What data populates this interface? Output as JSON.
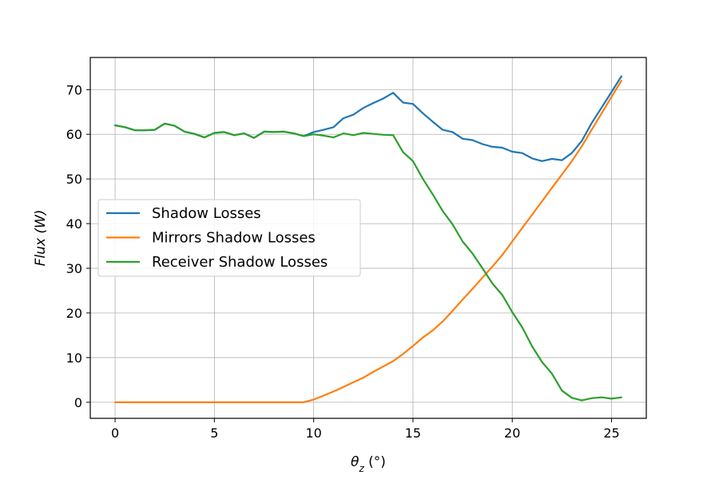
{
  "chart_data": {
    "type": "line",
    "xlabel": "θz (°)",
    "xlabel_main": "θ",
    "xlabel_sub": "z",
    "xlabel_unit": " (°)",
    "ylabel": "Flux (W)",
    "xlim": [
      -1.25,
      26.75
    ],
    "ylim": [
      -3.6,
      77.2
    ],
    "xticks": [
      0,
      5,
      10,
      15,
      20,
      25
    ],
    "yticks": [
      0,
      10,
      20,
      30,
      40,
      50,
      60,
      70
    ],
    "grid": true,
    "legend_position": "center-left",
    "x": [
      0,
      0.5,
      1,
      1.5,
      2,
      2.5,
      3,
      3.5,
      4,
      4.5,
      5,
      5.5,
      6,
      6.5,
      7,
      7.5,
      8,
      8.5,
      9,
      9.5,
      10,
      10.5,
      11,
      11.5,
      12,
      12.5,
      13,
      13.5,
      14,
      14.5,
      15,
      15.5,
      16,
      16.5,
      17,
      17.5,
      18,
      18.5,
      19,
      19.5,
      20,
      20.5,
      21,
      21.5,
      22,
      22.5,
      23,
      23.5,
      24,
      24.5,
      25,
      25.5
    ],
    "series": [
      {
        "name": "Shadow Losses",
        "color": "#1f77b4",
        "values": [
          62.0,
          61.6,
          60.9,
          60.9,
          61.0,
          62.4,
          61.9,
          60.6,
          60.1,
          59.3,
          60.3,
          60.5,
          59.8,
          60.2,
          59.2,
          60.6,
          60.5,
          60.6,
          60.2,
          59.6,
          60.5,
          61.0,
          61.6,
          63.6,
          64.4,
          65.9,
          67.0,
          68.0,
          69.3,
          67.1,
          66.8,
          64.7,
          62.8,
          61.0,
          60.5,
          59.0,
          58.7,
          57.8,
          57.2,
          57.0,
          56.1,
          55.8,
          54.6,
          54.0,
          54.5,
          54.2,
          55.8,
          58.5,
          62.5,
          66.0,
          69.5,
          73.0
        ]
      },
      {
        "name": "Mirrors Shadow Losses",
        "color": "#ff7f0e",
        "values": [
          0,
          0,
          0,
          0,
          0,
          0,
          0,
          0,
          0,
          0,
          0,
          0,
          0,
          0,
          0,
          0,
          0,
          0,
          0,
          0,
          0.6,
          1.5,
          2.4,
          3.4,
          4.5,
          5.5,
          6.8,
          8.0,
          9.2,
          10.8,
          12.6,
          14.5,
          16.1,
          18.1,
          20.5,
          23.0,
          25.4,
          27.9,
          30.4,
          33.0,
          36.0,
          39.0,
          42.0,
          45.0,
          48.0,
          51.0,
          54.0,
          57.3,
          61.0,
          64.7,
          68.4,
          72.0
        ]
      },
      {
        "name": "Receiver Shadow Losses",
        "color": "#2ca02c",
        "values": [
          62.0,
          61.6,
          60.9,
          60.9,
          61.0,
          62.4,
          61.9,
          60.6,
          60.1,
          59.3,
          60.3,
          60.5,
          59.8,
          60.2,
          59.2,
          60.6,
          60.5,
          60.6,
          60.2,
          59.6,
          60.0,
          59.7,
          59.3,
          60.2,
          59.8,
          60.3,
          60.1,
          59.9,
          59.8,
          56.0,
          54.0,
          50.0,
          46.5,
          42.8,
          39.8,
          36.0,
          33.3,
          30.0,
          26.6,
          24.0,
          20.2,
          16.8,
          12.5,
          9.0,
          6.4,
          2.6,
          1.0,
          0.4,
          0.9,
          1.1,
          0.8,
          1.1
        ]
      }
    ]
  }
}
